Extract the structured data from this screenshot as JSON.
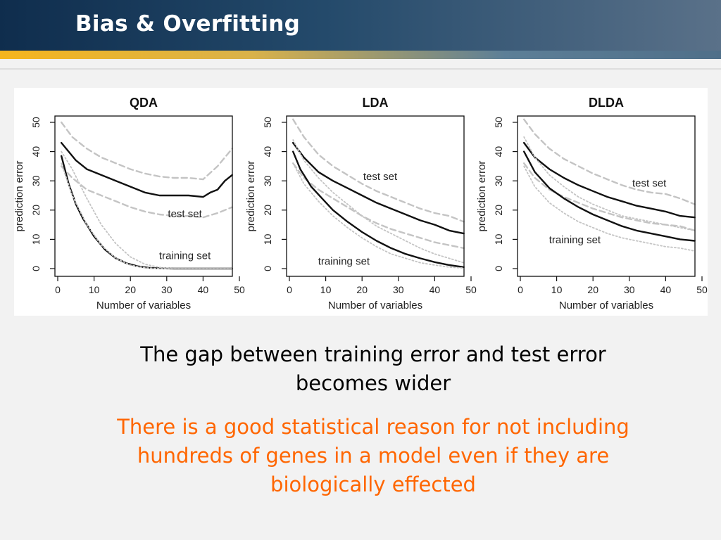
{
  "slide": {
    "title": "Bias & Overfitting",
    "gap_text": "The gap between training error and test error becomes wider",
    "reason_text": "There is a good statistical reason for not including hundreds of genes in a model even if they are biologically effected",
    "reason_color": "#ff6600",
    "header_color": "#173a5c",
    "stripe_color": "#f5b51e"
  },
  "chart_data": [
    {
      "type": "line",
      "title": "QDA",
      "xlabel": "Number of variables",
      "ylabel": "prediction error",
      "xlim": [
        0,
        50
      ],
      "ylim": [
        0,
        50
      ],
      "xticks": [
        0,
        10,
        20,
        30,
        40,
        50
      ],
      "yticks": [
        0,
        10,
        20,
        30,
        40,
        50
      ],
      "annotations": [
        {
          "text": "test set",
          "x": 35,
          "y": 18.8
        },
        {
          "text": "training set",
          "x": 35,
          "y": 4.5
        }
      ],
      "series": [
        {
          "role": "test",
          "style": "solid",
          "x": [
            1,
            3,
            5,
            8,
            12,
            16,
            20,
            24,
            28,
            32,
            36,
            40,
            42,
            44,
            46,
            48
          ],
          "y": [
            43,
            40,
            37,
            34,
            32,
            30,
            28,
            26,
            25,
            25,
            25,
            24.5,
            26,
            27,
            30,
            32
          ]
        },
        {
          "role": "test",
          "style": "dashed-upper",
          "x": [
            1,
            4,
            8,
            12,
            16,
            20,
            24,
            28,
            32,
            36,
            40,
            44,
            48
          ],
          "y": [
            50,
            45,
            41,
            38,
            36,
            34,
            32.5,
            31.5,
            31,
            31,
            30.5,
            35,
            41
          ]
        },
        {
          "role": "test",
          "style": "dashed-lower",
          "x": [
            1,
            4,
            8,
            12,
            16,
            20,
            24,
            28,
            32,
            36,
            40,
            44,
            48
          ],
          "y": [
            35,
            31,
            27,
            25,
            23,
            21,
            19.5,
            18.5,
            18,
            18,
            17.5,
            19,
            21
          ]
        },
        {
          "role": "training",
          "style": "solid",
          "x": [
            1,
            3,
            5,
            7,
            10,
            13,
            16,
            19,
            22,
            25,
            28,
            32,
            36,
            40,
            44,
            48
          ],
          "y": [
            38.5,
            29,
            22,
            17,
            11,
            6.5,
            3.5,
            1.8,
            0.8,
            0.3,
            0.1,
            0,
            0,
            0,
            0,
            0
          ]
        },
        {
          "role": "training",
          "style": "dotted-upper",
          "x": [
            1,
            4,
            8,
            12,
            16,
            20,
            24,
            28,
            32,
            36,
            40,
            44,
            48
          ],
          "y": [
            40,
            34,
            24,
            15,
            8.5,
            4,
            1.5,
            0.4,
            0,
            0,
            0,
            0,
            0
          ]
        },
        {
          "role": "training",
          "style": "dotted-lower",
          "x": [
            1,
            4,
            8,
            12,
            16,
            20,
            24,
            28,
            32,
            36,
            40,
            44,
            48
          ],
          "y": [
            36,
            25,
            15,
            8,
            3.5,
            1.2,
            0.3,
            0,
            0,
            0,
            0,
            0,
            0
          ]
        }
      ]
    },
    {
      "type": "line",
      "title": "LDA",
      "xlabel": "Number of variables",
      "ylabel": "prediction error",
      "xlim": [
        0,
        50
      ],
      "ylim": [
        0,
        50
      ],
      "xticks": [
        0,
        10,
        20,
        30,
        40,
        50
      ],
      "yticks": [
        0,
        10,
        20,
        30,
        40,
        50
      ],
      "annotations": [
        {
          "text": "test set",
          "x": 25,
          "y": 31.5
        },
        {
          "text": "training set",
          "x": 15,
          "y": 2.5
        }
      ],
      "series": [
        {
          "role": "test",
          "style": "solid",
          "x": [
            1,
            4,
            8,
            12,
            16,
            20,
            24,
            28,
            32,
            36,
            40,
            44,
            48
          ],
          "y": [
            43,
            38,
            33,
            30,
            27.5,
            25,
            22.5,
            20.5,
            18.5,
            16.5,
            15,
            13,
            12
          ]
        },
        {
          "role": "test",
          "style": "dashed-upper",
          "x": [
            1,
            4,
            8,
            12,
            16,
            20,
            24,
            28,
            32,
            36,
            40,
            44,
            48
          ],
          "y": [
            51,
            45,
            39,
            35,
            32,
            29,
            26.5,
            24.5,
            22.5,
            20.5,
            19,
            18,
            16
          ]
        },
        {
          "role": "test",
          "style": "dashed-lower",
          "x": [
            1,
            4,
            8,
            12,
            16,
            20,
            24,
            28,
            32,
            36,
            40,
            44,
            48
          ],
          "y": [
            36,
            31,
            27,
            24,
            21,
            18,
            15.5,
            13.5,
            12,
            10.5,
            9,
            8,
            7
          ]
        },
        {
          "role": "training",
          "style": "solid",
          "x": [
            1,
            3,
            6,
            9,
            12,
            16,
            20,
            24,
            28,
            32,
            36,
            40,
            44,
            48
          ],
          "y": [
            40,
            34,
            28,
            24,
            20,
            16,
            12.5,
            9.5,
            7,
            5,
            3.5,
            2.2,
            1.2,
            0.5
          ]
        },
        {
          "role": "training",
          "style": "dotted-upper",
          "x": [
            1,
            4,
            8,
            12,
            16,
            20,
            24,
            28,
            32,
            36,
            40,
            44,
            48
          ],
          "y": [
            44,
            37,
            31,
            26,
            22,
            18,
            14.5,
            12,
            9.5,
            7,
            5,
            3.5,
            2
          ]
        },
        {
          "role": "training",
          "style": "dotted-lower",
          "x": [
            1,
            4,
            8,
            12,
            16,
            20,
            24,
            28,
            32,
            36,
            40,
            44,
            48
          ],
          "y": [
            36,
            29,
            23,
            18,
            14,
            10.5,
            7.5,
            5,
            3.5,
            2,
            1.2,
            0.5,
            0.2
          ]
        }
      ]
    },
    {
      "type": "line",
      "title": "DLDA",
      "xlabel": "Number of variables",
      "ylabel": "prediction error",
      "xlim": [
        0,
        50
      ],
      "ylim": [
        0,
        50
      ],
      "xticks": [
        0,
        10,
        20,
        30,
        40,
        50
      ],
      "yticks": [
        0,
        10,
        20,
        30,
        40,
        50
      ],
      "annotations": [
        {
          "text": "test set",
          "x": 35.5,
          "y": 29.2
        },
        {
          "text": "training set",
          "x": 15,
          "y": 9.8
        }
      ],
      "series": [
        {
          "role": "test",
          "style": "solid",
          "x": [
            1,
            4,
            8,
            12,
            16,
            20,
            24,
            28,
            32,
            36,
            40,
            44,
            48
          ],
          "y": [
            43,
            38,
            34,
            31,
            28.5,
            26.5,
            24.5,
            23,
            21.5,
            20.5,
            19.5,
            18,
            17.5
          ]
        },
        {
          "role": "test",
          "style": "dashed-upper",
          "x": [
            1,
            4,
            8,
            12,
            16,
            20,
            24,
            28,
            32,
            36,
            40,
            44,
            48
          ],
          "y": [
            51,
            46,
            41,
            37.5,
            35,
            32.5,
            30.5,
            28.5,
            27,
            26,
            25.5,
            24,
            22
          ]
        },
        {
          "role": "test",
          "style": "dashed-lower",
          "x": [
            1,
            4,
            8,
            12,
            16,
            20,
            24,
            28,
            32,
            36,
            40,
            44,
            48
          ],
          "y": [
            36,
            31,
            27,
            24.5,
            22.5,
            20.5,
            19,
            17.5,
            16.5,
            15.5,
            15,
            14.5,
            13
          ]
        },
        {
          "role": "training",
          "style": "solid",
          "x": [
            1,
            4,
            8,
            12,
            16,
            20,
            24,
            28,
            32,
            36,
            40,
            44,
            48
          ],
          "y": [
            40,
            33,
            27.5,
            24,
            21,
            18.5,
            16.5,
            14.5,
            13,
            12,
            11,
            10,
            9.5
          ]
        },
        {
          "role": "training",
          "style": "dotted-upper",
          "x": [
            1,
            4,
            8,
            12,
            16,
            20,
            24,
            28,
            32,
            36,
            40,
            44,
            48
          ],
          "y": [
            45,
            38,
            32,
            28,
            24.5,
            22,
            20,
            18,
            17,
            16,
            15,
            14,
            13
          ]
        },
        {
          "role": "training",
          "style": "dotted-lower",
          "x": [
            1,
            4,
            8,
            12,
            16,
            20,
            24,
            28,
            32,
            36,
            40,
            44,
            48
          ],
          "y": [
            35,
            28,
            22.5,
            19,
            16,
            14,
            12,
            10.5,
            9.5,
            8.5,
            7.5,
            7,
            6
          ]
        }
      ]
    }
  ]
}
